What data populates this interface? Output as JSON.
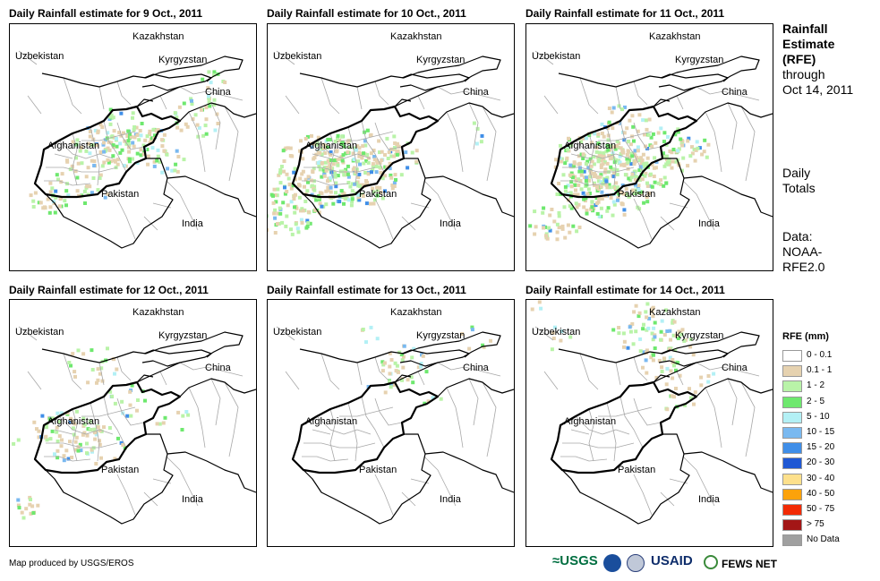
{
  "panels": [
    {
      "title": "Daily Rainfall estimate for 9 Oct., 2011"
    },
    {
      "title": "Daily Rainfall estimate for 10 Oct., 2011"
    },
    {
      "title": "Daily Rainfall estimate for 11 Oct., 2011"
    },
    {
      "title": "Daily Rainfall estimate for 12 Oct., 2011"
    },
    {
      "title": "Daily Rainfall estimate for 13 Oct., 2011"
    },
    {
      "title": "Daily Rainfall estimate for 14 Oct., 2011"
    }
  ],
  "countries": {
    "kazakhstan": "Kazakhstan",
    "uzbekistan": "Uzbekistan",
    "kyrgyzstan": "Kyrgyzstan",
    "china": "China",
    "afghanistan": "Afghanistan",
    "pakistan": "Pakistan",
    "india": "India"
  },
  "sidebar": {
    "title_line1": "Rainfall",
    "title_line2": "Estimate",
    "title_line3": "(RFE)",
    "through": "through",
    "date": "Oct 14, 2011",
    "daily": "Daily",
    "totals": "Totals",
    "data": "Data:",
    "source1": "NOAA-",
    "source2": "RFE2.0"
  },
  "legend": {
    "title": "RFE (mm)",
    "items": [
      {
        "label": "0 - 0.1",
        "color": "#ffffff"
      },
      {
        "label": "0.1 - 1",
        "color": "#e6d2b0"
      },
      {
        "label": "1 - 2",
        "color": "#b9f3a8"
      },
      {
        "label": "2 - 5",
        "color": "#6ee86e"
      },
      {
        "label": "5 - 10",
        "color": "#b3f0f5"
      },
      {
        "label": "10 - 15",
        "color": "#7ab9f0"
      },
      {
        "label": "15 - 20",
        "color": "#3f8ee8"
      },
      {
        "label": "20 - 30",
        "color": "#1f58d4"
      },
      {
        "label": "30 - 40",
        "color": "#fde08c"
      },
      {
        "label": "40 - 50",
        "color": "#fca20a"
      },
      {
        "label": "50 - 75",
        "color": "#f22b05"
      },
      {
        "label": "> 75",
        "color": "#a31616"
      },
      {
        "label": "No Data",
        "color": "#a0a0a0"
      }
    ]
  },
  "footer": {
    "credit": "Map produced by USGS/EROS",
    "logo_usgs": "≈USGS",
    "logo_usaid": "USAID",
    "logo_fews": "FEWS NET"
  }
}
